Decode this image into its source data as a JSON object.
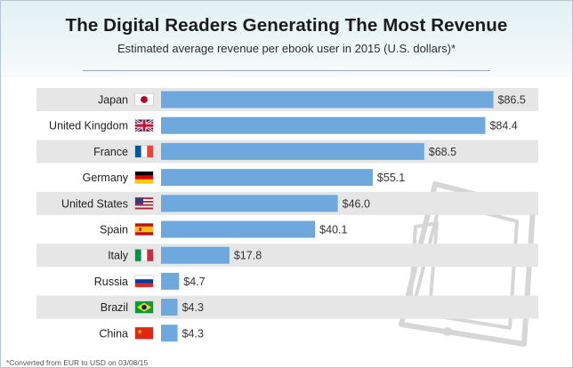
{
  "chart_data": {
    "type": "bar",
    "orientation": "horizontal",
    "title": "The Digital Readers Generating The Most Revenue",
    "subtitle": "Estimated average revenue per ebook user in 2015 (U.S. dollars)*",
    "categories": [
      "Japan",
      "United Kingdom",
      "France",
      "Germany",
      "United States",
      "Spain",
      "Italy",
      "Russia",
      "Brazil",
      "China"
    ],
    "values": [
      86.5,
      84.4,
      68.5,
      55.1,
      46.0,
      40.1,
      17.8,
      4.7,
      4.3,
      4.3
    ],
    "value_labels": [
      "$86.5",
      "$84.4",
      "$68.5",
      "$55.1",
      "$46.0",
      "$40.1",
      "$17.8",
      "$4.7",
      "$4.3",
      "$4.3"
    ],
    "flags": [
      "japan-flag-icon",
      "uk-flag-icon",
      "france-flag-icon",
      "germany-flag-icon",
      "usa-flag-icon",
      "spain-flag-icon",
      "italy-flag-icon",
      "russia-flag-icon",
      "brazil-flag-icon",
      "china-flag-icon"
    ],
    "xlim": [
      0,
      88
    ],
    "bar_color": "#6fa8dc",
    "stripe_color": "#e6e6e6",
    "grid": false,
    "footnote": "*Converted from EUR to USD on 03/08/15"
  }
}
